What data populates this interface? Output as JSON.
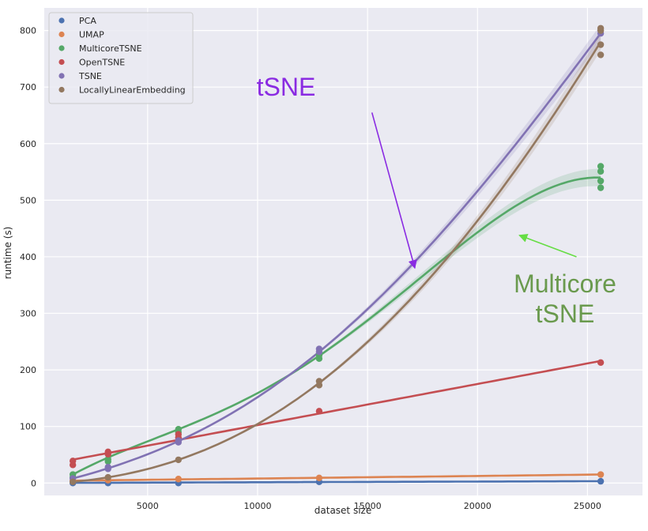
{
  "chart_data": {
    "type": "scatter",
    "xlabel": "dataset size",
    "ylabel": "runtime (s)",
    "xlim": [
      300,
      27500
    ],
    "ylim": [
      -22,
      840
    ],
    "xticks": [
      5000,
      10000,
      15000,
      20000,
      25000
    ],
    "yticks": [
      0,
      100,
      200,
      300,
      400,
      500,
      600,
      700,
      800
    ],
    "grid": true,
    "legend_position": "top-left",
    "x": [
      1600,
      3200,
      6400,
      12800,
      25600
    ],
    "series": [
      {
        "name": "PCA",
        "color": "#4c72b0",
        "points": [
          [
            1600,
            0
          ],
          [
            3200,
            0
          ],
          [
            6400,
            0
          ],
          [
            12800,
            2
          ],
          [
            25600,
            3
          ]
        ],
        "trend": [
          0,
          0.5,
          1,
          2,
          3
        ],
        "fit": "linear"
      },
      {
        "name": "UMAP",
        "color": "#dd8452",
        "points": [
          [
            1600,
            4
          ],
          [
            3200,
            5
          ],
          [
            6400,
            7
          ],
          [
            12800,
            9
          ],
          [
            25600,
            15
          ]
        ],
        "trend": [
          4,
          5,
          6.5,
          9,
          15
        ],
        "fit": "linear"
      },
      {
        "name": "MulticoreTSNE",
        "color": "#55a868",
        "points": [
          [
            1600,
            10
          ],
          [
            1600,
            15
          ],
          [
            3200,
            38
          ],
          [
            3200,
            42
          ],
          [
            6400,
            90
          ],
          [
            6400,
            95
          ],
          [
            12800,
            220
          ],
          [
            12800,
            226
          ],
          [
            25600,
            522
          ],
          [
            25600,
            534
          ],
          [
            25600,
            551
          ],
          [
            25600,
            560
          ]
        ],
        "trend": [
          15,
          45,
          95,
          225,
          540
        ],
        "fit": "quadratic"
      },
      {
        "name": "OpenTSNE",
        "color": "#c44e52",
        "points": [
          [
            1600,
            32
          ],
          [
            1600,
            39
          ],
          [
            3200,
            51
          ],
          [
            3200,
            55
          ],
          [
            6400,
            80
          ],
          [
            6400,
            86
          ],
          [
            12800,
            127
          ],
          [
            25600,
            213
          ]
        ],
        "trend": [
          38,
          52,
          78,
          128,
          213
        ],
        "fit": "linear"
      },
      {
        "name": "TSNE",
        "color": "#8172b3",
        "points": [
          [
            1600,
            8
          ],
          [
            3200,
            25
          ],
          [
            3200,
            28
          ],
          [
            6400,
            72
          ],
          [
            6400,
            75
          ],
          [
            12800,
            232
          ],
          [
            12800,
            237
          ],
          [
            25600,
            795
          ]
        ],
        "trend": [
          8,
          26,
          74,
          232,
          795
        ],
        "fit": "quadratic"
      },
      {
        "name": "LocallyLinearEmbedding",
        "color": "#937860",
        "points": [
          [
            1600,
            2
          ],
          [
            3200,
            10
          ],
          [
            6400,
            41
          ],
          [
            12800,
            173
          ],
          [
            12800,
            180
          ],
          [
            25600,
            757
          ],
          [
            25600,
            775
          ],
          [
            25600,
            800
          ],
          [
            25600,
            804
          ]
        ],
        "trend": [
          2,
          10,
          41,
          177,
          780
        ],
        "fit": "quadratic"
      }
    ],
    "annotations": [
      {
        "text": "tSNE",
        "color": "#8a2be2",
        "from": [
          15200,
          655
        ],
        "to": [
          17150,
          380
        ]
      },
      {
        "text_lines": [
          "Multicore",
          "tSNE"
        ],
        "color": "#6a9a4e",
        "arrow_color": "#66dd44",
        "from": [
          24500,
          400
        ],
        "to": [
          21900,
          438
        ]
      }
    ]
  }
}
